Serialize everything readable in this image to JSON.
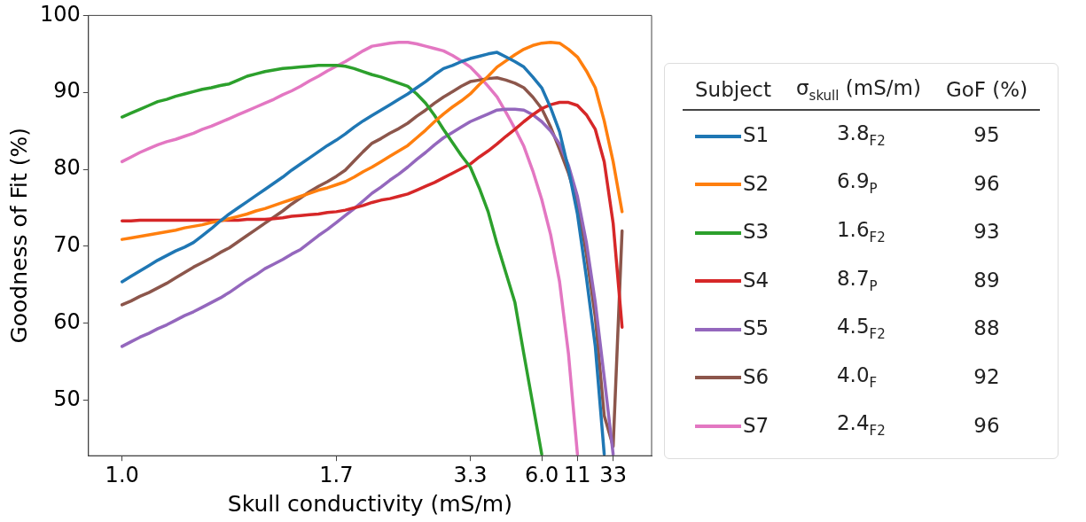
{
  "chart_data": {
    "type": "line",
    "xlabel": "Skull conductivity (mS/m)",
    "ylabel": "Goodness of Fit (%)",
    "legend_title": "Subject",
    "legend": "right",
    "grid": false,
    "marker": "none",
    "line_style": "solid",
    "categories": [
      "1.0",
      null,
      null,
      null,
      null,
      null,
      null,
      null,
      null,
      null,
      null,
      null,
      null,
      null,
      null,
      null,
      null,
      null,
      null,
      null,
      null,
      null,
      null,
      null,
      "1.7",
      null,
      null,
      null,
      null,
      null,
      null,
      null,
      null,
      null,
      null,
      null,
      null,
      null,
      null,
      "3.3",
      null,
      null,
      null,
      null,
      null,
      null,
      null,
      "6.0",
      null,
      null,
      null,
      "11",
      null,
      null,
      null,
      "33",
      null
    ],
    "ylim": [
      42.8,
      100
    ],
    "yticks": [
      50,
      60,
      70,
      80,
      90,
      100
    ],
    "annotations": [
      "σ$_{skull}$ (mS/m)",
      "GoF (%)",
      "3.8$_{F2}$",
      "95",
      "6.9$_{P}$",
      "96",
      "1.6$_{F2}$",
      "93",
      "8.7$_{P}$",
      "89",
      "4.5$_{F2}$",
      "88",
      "4.0$_{F}$",
      "92",
      "2.4$_{F2}$",
      "96"
    ],
    "series": [
      {
        "name": "S1",
        "color": "#1f77b4",
        "values": [
          65.4,
          66.1,
          66.8,
          67.5,
          68.2,
          68.8,
          69.4,
          69.9,
          70.5,
          71.4,
          72.3,
          73.3,
          74.2,
          75.0,
          75.8,
          76.6,
          77.4,
          78.2,
          79.0,
          79.9,
          80.7,
          81.5,
          82.3,
          83.1,
          83.8,
          84.6,
          85.5,
          86.3,
          87.0,
          87.7,
          88.4,
          89.1,
          89.8,
          90.6,
          91.4,
          92.3,
          93.1,
          93.5,
          94.0,
          94.4,
          94.7,
          95.0,
          95.2,
          94.6,
          94.0,
          93.3,
          92.0,
          90.6,
          88.0,
          84.9,
          80.0,
          74.2,
          66,
          57,
          43,
          null,
          null
        ]
      },
      {
        "name": "S2",
        "color": "#ff7f0e",
        "values": [
          70.9,
          71.1,
          71.3,
          71.5,
          71.7,
          71.9,
          72.1,
          72.4,
          72.6,
          72.8,
          73.1,
          73.3,
          73.6,
          73.9,
          74.2,
          74.6,
          74.9,
          75.3,
          75.7,
          76.1,
          76.5,
          76.9,
          77.3,
          77.6,
          78.0,
          78.4,
          79.0,
          79.7,
          80.3,
          81.0,
          81.7,
          82.4,
          83.1,
          84.1,
          85.1,
          86.2,
          87.2,
          88.1,
          88.9,
          89.8,
          91.0,
          92.1,
          93.3,
          94.1,
          94.9,
          95.6,
          96.1,
          96.4,
          96.5,
          96.4,
          95.6,
          94.6,
          92.8,
          90.6,
          86.3,
          81.0,
          74.5
        ]
      },
      {
        "name": "S3",
        "color": "#2ca02c",
        "values": [
          86.8,
          87.3,
          87.8,
          88.3,
          88.8,
          89.1,
          89.5,
          89.8,
          90.1,
          90.4,
          90.6,
          90.9,
          91.1,
          91.6,
          92.1,
          92.4,
          92.7,
          92.9,
          93.1,
          93.2,
          93.3,
          93.4,
          93.5,
          93.5,
          93.5,
          93.4,
          93.1,
          92.7,
          92.3,
          92.0,
          91.6,
          91.2,
          90.8,
          89.8,
          88.6,
          87.0,
          85.2,
          83.5,
          81.8,
          80.3,
          77.6,
          74.5,
          70.3,
          66.5,
          62.7,
          56,
          49.5,
          43,
          null,
          null,
          null,
          null,
          null,
          null,
          null,
          null,
          null
        ]
      },
      {
        "name": "S4",
        "color": "#d62728",
        "values": [
          73.3,
          73.3,
          73.4,
          73.4,
          73.4,
          73.4,
          73.4,
          73.4,
          73.4,
          73.4,
          73.4,
          73.4,
          73.4,
          73.4,
          73.5,
          73.5,
          73.5,
          73.6,
          73.7,
          73.9,
          74.0,
          74.1,
          74.2,
          74.4,
          74.5,
          74.7,
          75.0,
          75.3,
          75.7,
          76.0,
          76.2,
          76.5,
          76.8,
          77.3,
          77.8,
          78.3,
          78.9,
          79.5,
          80.1,
          80.7,
          81.6,
          82.4,
          83.3,
          84.3,
          85.2,
          86.2,
          87.1,
          87.9,
          88.4,
          88.7,
          88.7,
          88.3,
          87.1,
          85.2,
          81.0,
          73,
          59.5
        ]
      },
      {
        "name": "S5",
        "color": "#9467bd",
        "values": [
          57.0,
          57.6,
          58.2,
          58.7,
          59.3,
          59.8,
          60.4,
          61.0,
          61.5,
          62.1,
          62.7,
          63.3,
          64.0,
          64.8,
          65.6,
          66.3,
          67.1,
          67.7,
          68.3,
          69.0,
          69.6,
          70.5,
          71.4,
          72.2,
          73.1,
          74.0,
          74.9,
          75.9,
          76.9,
          77.7,
          78.6,
          79.4,
          80.3,
          81.3,
          82.2,
          83.2,
          84.1,
          84.8,
          85.5,
          86.2,
          86.7,
          87.2,
          87.7,
          87.8,
          87.8,
          87.7,
          87.1,
          86.2,
          85.0,
          83.3,
          80.5,
          76.5,
          70.5,
          62.7,
          53,
          43,
          null
        ]
      },
      {
        "name": "S6",
        "color": "#8c564b",
        "values": [
          62.4,
          62.9,
          63.5,
          64.0,
          64.6,
          65.2,
          65.9,
          66.6,
          67.3,
          67.9,
          68.5,
          69.2,
          69.8,
          70.6,
          71.4,
          72.2,
          73.0,
          73.8,
          74.6,
          75.5,
          76.3,
          77.1,
          77.8,
          78.4,
          79.1,
          79.9,
          81.1,
          82.3,
          83.4,
          84.0,
          84.7,
          85.3,
          86.0,
          86.9,
          87.7,
          88.6,
          89.4,
          90.1,
          90.8,
          91.4,
          91.6,
          91.8,
          91.9,
          91.6,
          91.2,
          90.6,
          89.4,
          87.9,
          85.5,
          82.6,
          79.5,
          75.7,
          69,
          60.8,
          48,
          44,
          72
        ]
      },
      {
        "name": "S7",
        "color": "#e377c2",
        "values": [
          81.0,
          81.6,
          82.2,
          82.7,
          83.2,
          83.6,
          83.9,
          84.3,
          84.7,
          85.2,
          85.6,
          86.1,
          86.6,
          87.1,
          87.6,
          88.1,
          88.6,
          89.1,
          89.7,
          90.2,
          90.8,
          91.5,
          92.1,
          92.8,
          93.4,
          94.0,
          94.7,
          95.4,
          96.0,
          96.2,
          96.4,
          96.5,
          96.5,
          96.3,
          96.0,
          95.7,
          95.4,
          94.8,
          94.1,
          93.3,
          92.1,
          90.8,
          89.4,
          87.4,
          85.3,
          83.0,
          79.8,
          76.1,
          71.5,
          65.4,
          56,
          43,
          null,
          null,
          null,
          null,
          null
        ]
      }
    ]
  }
}
